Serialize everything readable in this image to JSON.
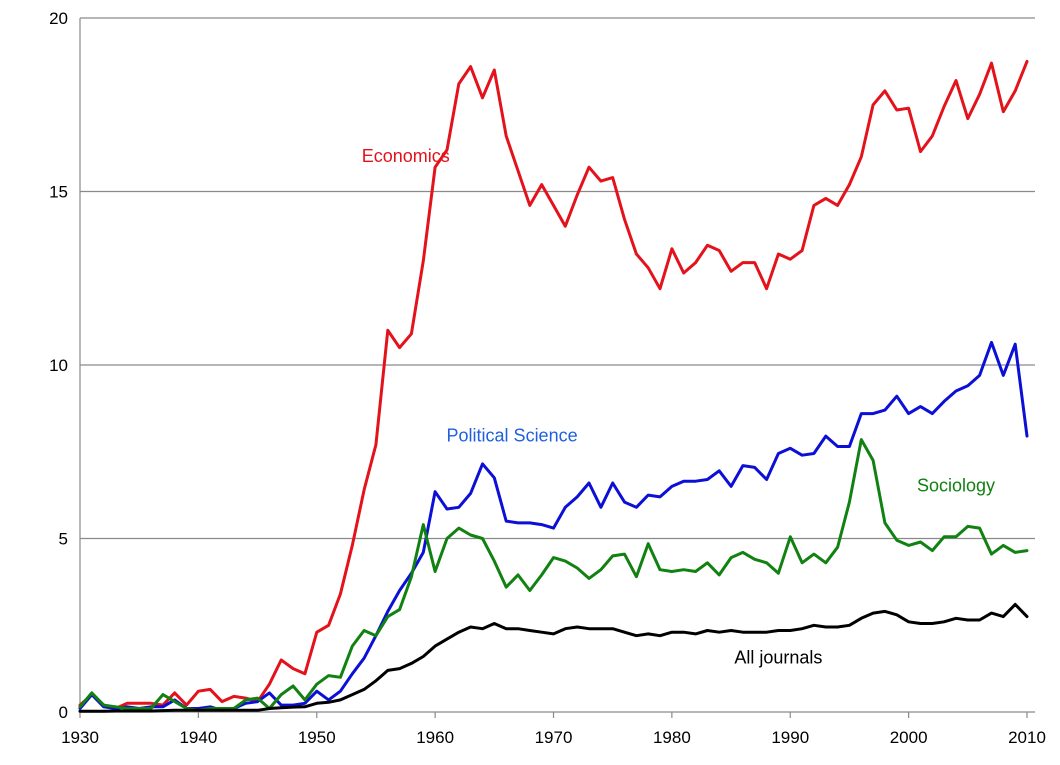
{
  "chart_data": {
    "type": "line",
    "title": "",
    "xlabel": "",
    "ylabel": "",
    "xlim": [
      1930,
      2010
    ],
    "ylim": [
      0,
      20
    ],
    "x_ticks": [
      "1930",
      "1940",
      "1950",
      "1960",
      "1970",
      "1980",
      "1990",
      "2000",
      "2010"
    ],
    "y_ticks": [
      "0",
      "5",
      "10",
      "15",
      "20"
    ],
    "grid": "horizontal",
    "legend": "inline labels",
    "x": [
      1930,
      1931,
      1932,
      1933,
      1934,
      1935,
      1936,
      1937,
      1938,
      1939,
      1940,
      1941,
      1942,
      1943,
      1944,
      1945,
      1946,
      1947,
      1948,
      1949,
      1950,
      1951,
      1952,
      1953,
      1954,
      1955,
      1956,
      1957,
      1958,
      1959,
      1960,
      1961,
      1962,
      1963,
      1964,
      1965,
      1966,
      1967,
      1968,
      1969,
      1970,
      1971,
      1972,
      1973,
      1974,
      1975,
      1976,
      1977,
      1978,
      1979,
      1980,
      1981,
      1982,
      1983,
      1984,
      1985,
      1986,
      1987,
      1988,
      1989,
      1990,
      1991,
      1992,
      1993,
      1994,
      1995,
      1996,
      1997,
      1998,
      1999,
      2000,
      2001,
      2002,
      2003,
      2004,
      2005,
      2006,
      2007,
      2008,
      2009,
      2010
    ],
    "series": [
      {
        "name": "Economics",
        "color": "#e3121b",
        "label_text": "Economics",
        "values": [
          0.2,
          0.5,
          0.2,
          0.1,
          0.25,
          0.25,
          0.25,
          0.2,
          0.55,
          0.2,
          0.6,
          0.65,
          0.3,
          0.45,
          0.4,
          0.3,
          0.8,
          1.5,
          1.25,
          1.1,
          2.3,
          2.5,
          3.4,
          4.8,
          6.4,
          7.7,
          11.0,
          10.5,
          10.9,
          13.0,
          15.7,
          16.2,
          18.1,
          18.6,
          17.7,
          18.5,
          16.6,
          15.6,
          14.6,
          15.2,
          14.6,
          14.0,
          14.9,
          15.7,
          15.3,
          15.4,
          14.2,
          13.2,
          12.8,
          12.2,
          13.35,
          12.65,
          12.95,
          13.45,
          13.3,
          12.7,
          12.95,
          12.95,
          12.2,
          13.2,
          13.05,
          13.3,
          14.6,
          14.8,
          14.6,
          15.2,
          16.0,
          17.5,
          17.9,
          17.35,
          17.4,
          16.15,
          16.6,
          17.45,
          18.2,
          17.1,
          17.8,
          18.7,
          17.3,
          17.9,
          18.75
        ]
      },
      {
        "name": "Political Science",
        "color": "#0c0fd6",
        "label_text": "Political Science",
        "label_color": "#1f5fe0",
        "values": [
          0.1,
          0.5,
          0.15,
          0.1,
          0.15,
          0.1,
          0.15,
          0.15,
          0.35,
          0.1,
          0.1,
          0.15,
          0.05,
          0.1,
          0.25,
          0.3,
          0.55,
          0.2,
          0.2,
          0.25,
          0.6,
          0.35,
          0.6,
          1.1,
          1.55,
          2.2,
          2.9,
          3.5,
          4.0,
          4.6,
          6.35,
          5.85,
          5.9,
          6.3,
          7.15,
          6.75,
          5.5,
          5.45,
          5.45,
          5.4,
          5.3,
          5.9,
          6.2,
          6.6,
          5.9,
          6.6,
          6.05,
          5.9,
          6.25,
          6.2,
          6.5,
          6.65,
          6.65,
          6.7,
          6.95,
          6.5,
          7.1,
          7.05,
          6.7,
          7.45,
          7.6,
          7.4,
          7.45,
          7.95,
          7.65,
          7.65,
          8.6,
          8.6,
          8.7,
          9.1,
          8.6,
          8.8,
          8.6,
          8.95,
          9.25,
          9.4,
          9.7,
          10.65,
          9.7,
          10.6,
          7.95
        ]
      },
      {
        "name": "Sociology",
        "color": "#118111",
        "label_text": "Sociology",
        "values": [
          0.15,
          0.55,
          0.2,
          0.15,
          0.1,
          0.1,
          0.1,
          0.5,
          0.3,
          0.1,
          0.05,
          0.1,
          0.1,
          0.1,
          0.35,
          0.4,
          0.1,
          0.5,
          0.75,
          0.35,
          0.8,
          1.05,
          1.0,
          1.9,
          2.35,
          2.2,
          2.75,
          2.95,
          3.9,
          5.4,
          4.05,
          5.0,
          5.3,
          5.1,
          5.0,
          4.35,
          3.6,
          3.95,
          3.5,
          3.95,
          4.45,
          4.35,
          4.15,
          3.85,
          4.1,
          4.5,
          4.55,
          3.9,
          4.85,
          4.1,
          4.05,
          4.1,
          4.05,
          4.3,
          3.95,
          4.45,
          4.6,
          4.4,
          4.3,
          4.0,
          5.05,
          4.3,
          4.55,
          4.3,
          4.75,
          6.05,
          7.85,
          7.25,
          5.45,
          4.95,
          4.8,
          4.9,
          4.65,
          5.05,
          5.05,
          5.35,
          5.3,
          4.55,
          4.8,
          4.6,
          4.65
        ]
      },
      {
        "name": "All journals",
        "color": "#000000",
        "label_text": "All journals",
        "values": [
          0.02,
          0.02,
          0.02,
          0.03,
          0.03,
          0.03,
          0.03,
          0.04,
          0.05,
          0.05,
          0.05,
          0.05,
          0.05,
          0.05,
          0.05,
          0.05,
          0.1,
          0.12,
          0.14,
          0.15,
          0.25,
          0.28,
          0.35,
          0.5,
          0.65,
          0.9,
          1.2,
          1.25,
          1.4,
          1.6,
          1.9,
          2.1,
          2.3,
          2.45,
          2.4,
          2.55,
          2.4,
          2.4,
          2.35,
          2.3,
          2.25,
          2.4,
          2.45,
          2.4,
          2.4,
          2.4,
          2.3,
          2.2,
          2.25,
          2.2,
          2.3,
          2.3,
          2.25,
          2.35,
          2.3,
          2.35,
          2.3,
          2.3,
          2.3,
          2.35,
          2.35,
          2.4,
          2.5,
          2.45,
          2.45,
          2.5,
          2.7,
          2.85,
          2.9,
          2.8,
          2.6,
          2.55,
          2.55,
          2.6,
          2.7,
          2.65,
          2.65,
          2.85,
          2.75,
          3.1,
          2.75
        ]
      }
    ]
  }
}
